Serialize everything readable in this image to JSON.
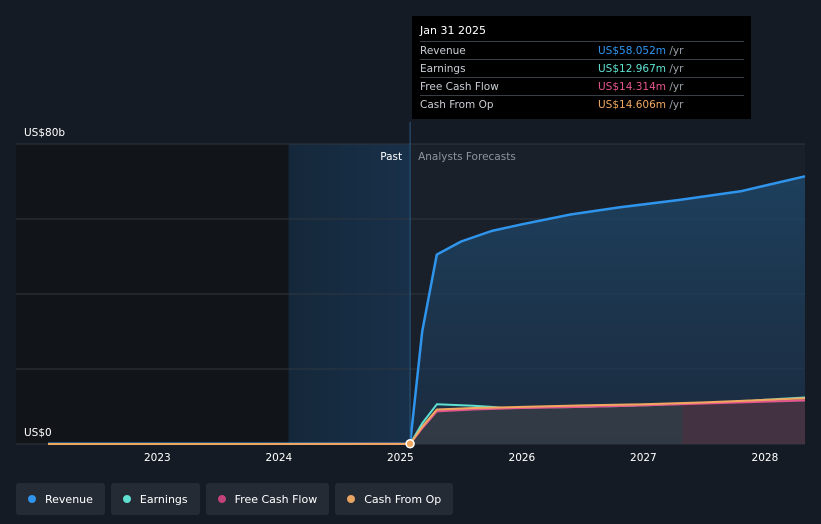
{
  "tooltip": {
    "date": "Jan 31 2025",
    "rows": [
      {
        "label": "Revenue",
        "value": "US$58.052m",
        "unit": "/yr",
        "color": "#2f94ec"
      },
      {
        "label": "Earnings",
        "value": "US$12.967m",
        "unit": "/yr",
        "color": "#5fe0d0"
      },
      {
        "label": "Free Cash Flow",
        "value": "US$14.314m",
        "unit": "/yr",
        "color": "#e4568c"
      },
      {
        "label": "Cash From Op",
        "value": "US$14.606m",
        "unit": "/yr",
        "color": "#f0a860"
      }
    ]
  },
  "legend": [
    {
      "label": "Revenue",
      "color": "#2f94ec"
    },
    {
      "label": "Earnings",
      "color": "#5fe0d0"
    },
    {
      "label": "Free Cash Flow",
      "color": "#c2427a"
    },
    {
      "label": "Cash From Op",
      "color": "#e8a561"
    }
  ],
  "regions": {
    "past": "Past",
    "forecast": "Analysts Forecasts"
  },
  "chart_data": {
    "type": "line",
    "title": "",
    "xlabel": "",
    "ylabel": "",
    "y_unit": "US$b",
    "ylim": [
      0,
      80
    ],
    "xlim": [
      2022.1,
      2028.33
    ],
    "y_tick_labels": [
      {
        "value": 80,
        "label": "US$80b"
      },
      {
        "value": 0,
        "label": "US$0"
      }
    ],
    "y_gridlines": [
      0,
      20,
      40,
      60,
      80
    ],
    "x_ticks": [
      2023,
      2024,
      2025,
      2026,
      2027,
      2028
    ],
    "divider_x": 2025.08,
    "highlight_start_x": 2024.08,
    "marker": {
      "x": 2025.08,
      "y": 0.058
    },
    "series": [
      {
        "name": "Revenue",
        "color": "#2f94ec",
        "fill": true,
        "points": [
          [
            2022.1,
            0.05
          ],
          [
            2025.08,
            0.058
          ],
          [
            2025.18,
            30
          ],
          [
            2025.3,
            50.5
          ],
          [
            2025.5,
            54
          ],
          [
            2025.75,
            56.8
          ],
          [
            2026.0,
            58.6
          ],
          [
            2026.4,
            61.2
          ],
          [
            2026.8,
            63.1
          ],
          [
            2027.3,
            65.1
          ],
          [
            2027.8,
            67.4
          ],
          [
            2028.33,
            71.4
          ]
        ]
      },
      {
        "name": "Earnings",
        "color": "#5fe0d0",
        "fill": false,
        "points": [
          [
            2022.1,
            0.01
          ],
          [
            2025.08,
            0.013
          ],
          [
            2025.18,
            5.5
          ],
          [
            2025.3,
            10.6
          ],
          [
            2025.6,
            10.2
          ],
          [
            2025.9,
            9.6
          ],
          [
            2026.5,
            9.9
          ],
          [
            2027.0,
            10.3
          ],
          [
            2027.5,
            10.9
          ],
          [
            2028.33,
            12.4
          ]
        ]
      },
      {
        "name": "Free Cash Flow",
        "color": "#e4568c",
        "fill": false,
        "points": [
          [
            2022.1,
            0.01
          ],
          [
            2025.08,
            0.014
          ],
          [
            2025.18,
            4.2
          ],
          [
            2025.3,
            8.7
          ],
          [
            2025.6,
            9.2
          ],
          [
            2026.0,
            9.6
          ],
          [
            2026.5,
            9.9
          ],
          [
            2027.0,
            10.3
          ],
          [
            2027.5,
            10.8
          ],
          [
            2028.33,
            11.6
          ]
        ]
      },
      {
        "name": "Cash From Op",
        "color": "#f0a860",
        "fill": false,
        "points": [
          [
            2022.1,
            0.01
          ],
          [
            2025.08,
            0.015
          ],
          [
            2025.18,
            4.6
          ],
          [
            2025.3,
            9.2
          ],
          [
            2025.6,
            9.6
          ],
          [
            2026.0,
            9.9
          ],
          [
            2026.5,
            10.3
          ],
          [
            2027.0,
            10.6
          ],
          [
            2027.5,
            11.1
          ],
          [
            2028.33,
            12.2
          ]
        ]
      }
    ]
  }
}
